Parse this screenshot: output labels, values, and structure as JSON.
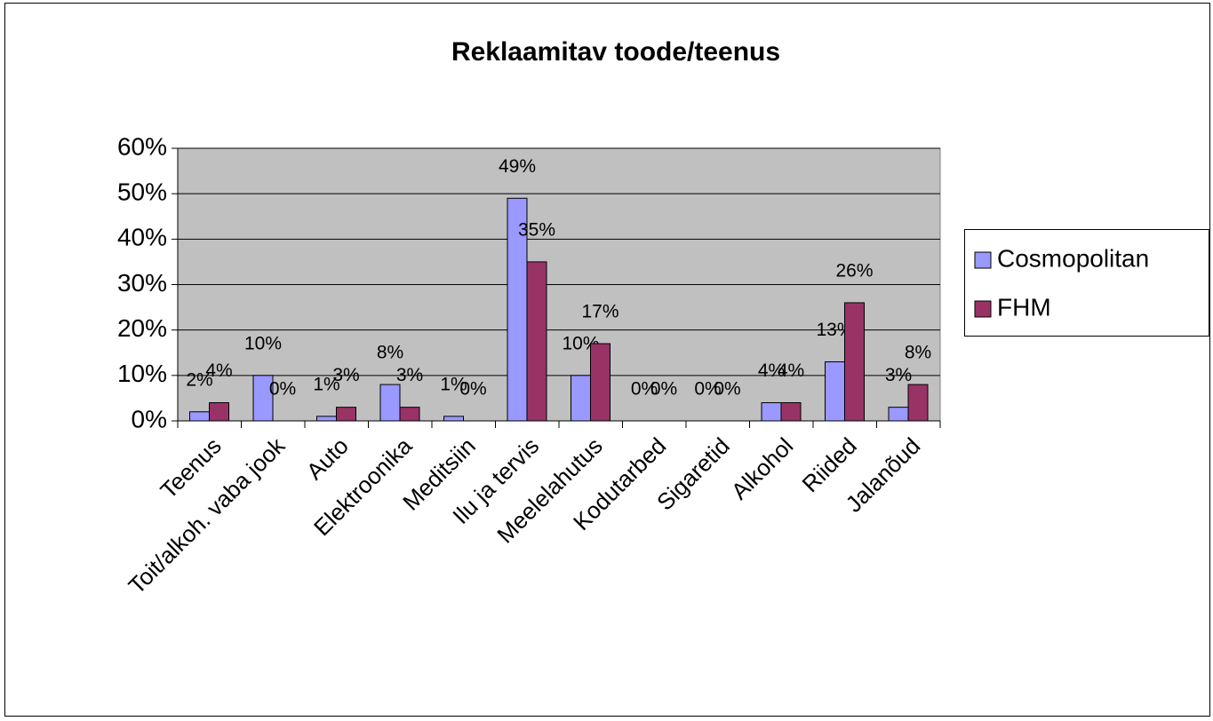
{
  "chart_data": {
    "type": "bar",
    "title": "Reklaamitav toode/teenus",
    "categories": [
      "Teenus",
      "Toit/alkoh. vaba jook",
      "Auto",
      "Elektroonika",
      "Meditsiin",
      "Ilu ja tervis",
      "Meelelahutus",
      "Kodutarbed",
      "Sigaretid",
      "Alkohol",
      "Riided",
      "Jalanõud"
    ],
    "series": [
      {
        "name": "Cosmopolitan",
        "color": "#9999ff",
        "values": [
          2,
          10,
          1,
          8,
          1,
          49,
          10,
          0,
          0,
          4,
          13,
          3
        ],
        "value_labels": [
          "2%",
          "10%",
          "1%",
          "8%",
          "1%",
          "49%",
          "10%",
          "0%",
          "0%",
          "4%",
          "13%",
          "3%"
        ]
      },
      {
        "name": "FHM",
        "color": "#993366",
        "values": [
          4,
          0,
          3,
          3,
          0,
          35,
          17,
          0,
          0,
          4,
          26,
          8
        ],
        "value_labels": [
          "4%",
          "0%",
          "3%",
          "3%",
          "0%",
          "35%",
          "17%",
          "0%",
          "0%",
          "4%",
          "26%",
          "8%"
        ]
      }
    ],
    "ylim": [
      0,
      60
    ],
    "yticks": [
      {
        "value": 0,
        "label": "0%"
      },
      {
        "value": 10,
        "label": "10%"
      },
      {
        "value": 20,
        "label": "20%"
      },
      {
        "value": 30,
        "label": "30%"
      },
      {
        "value": 40,
        "label": "40%"
      },
      {
        "value": 50,
        "label": "50%"
      },
      {
        "value": 60,
        "label": "60%"
      }
    ],
    "grid": true,
    "legend": "right",
    "plot_background": "#c0c0c0"
  }
}
